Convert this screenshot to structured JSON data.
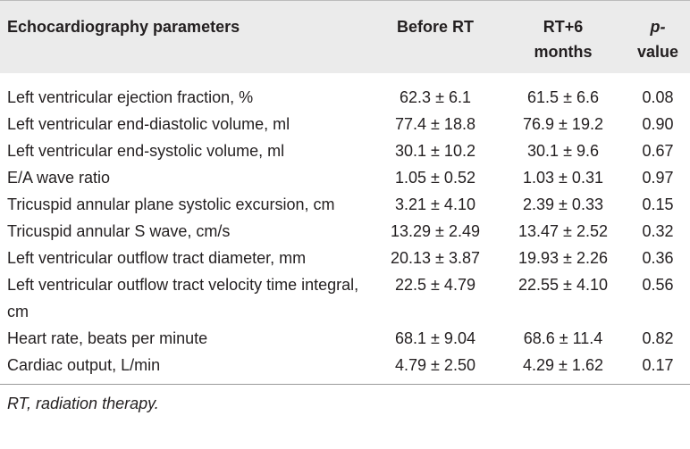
{
  "table": {
    "headers": [
      "Echocardiography parameters",
      "Before RT",
      "RT+6 months",
      [
        "p-",
        "value"
      ]
    ],
    "rows": [
      [
        "Left ventricular ejection fraction, %",
        "62.3 ± 6.1",
        "61.5 ± 6.6",
        "0.08"
      ],
      [
        "Left ventricular end-diastolic volume, ml",
        "77.4 ± 18.8",
        "76.9 ± 19.2",
        "0.90"
      ],
      [
        "Left ventricular end-systolic volume, ml",
        "30.1 ± 10.2",
        "30.1 ± 9.6",
        "0.67"
      ],
      [
        "E/A wave ratio",
        "1.05 ± 0.52",
        "1.03 ± 0.31",
        "0.97"
      ],
      [
        "Tricuspid annular plane systolic excursion, cm",
        "3.21 ± 4.10",
        "2.39 ± 0.33",
        "0.15"
      ],
      [
        "Tricuspid annular S wave, cm/s",
        "13.29 ± 2.49",
        "13.47 ± 2.52",
        "0.32"
      ],
      [
        "Left ventricular outflow tract diameter, mm",
        "20.13 ± 3.87",
        "19.93 ± 2.26",
        "0.36"
      ],
      [
        "Left ventricular outflow tract velocity time integral, cm",
        "22.5 ± 4.79",
        "22.55 ± 4.10",
        "0.56"
      ],
      [
        "Heart rate, beats per minute",
        "68.1 ± 9.04",
        "68.6 ± 11.4",
        "0.82"
      ],
      [
        "Cardiac output, L/min",
        "4.79 ± 2.50",
        "4.29 ± 1.62",
        "0.17"
      ]
    ]
  },
  "footnote": "RT, radiation therapy."
}
